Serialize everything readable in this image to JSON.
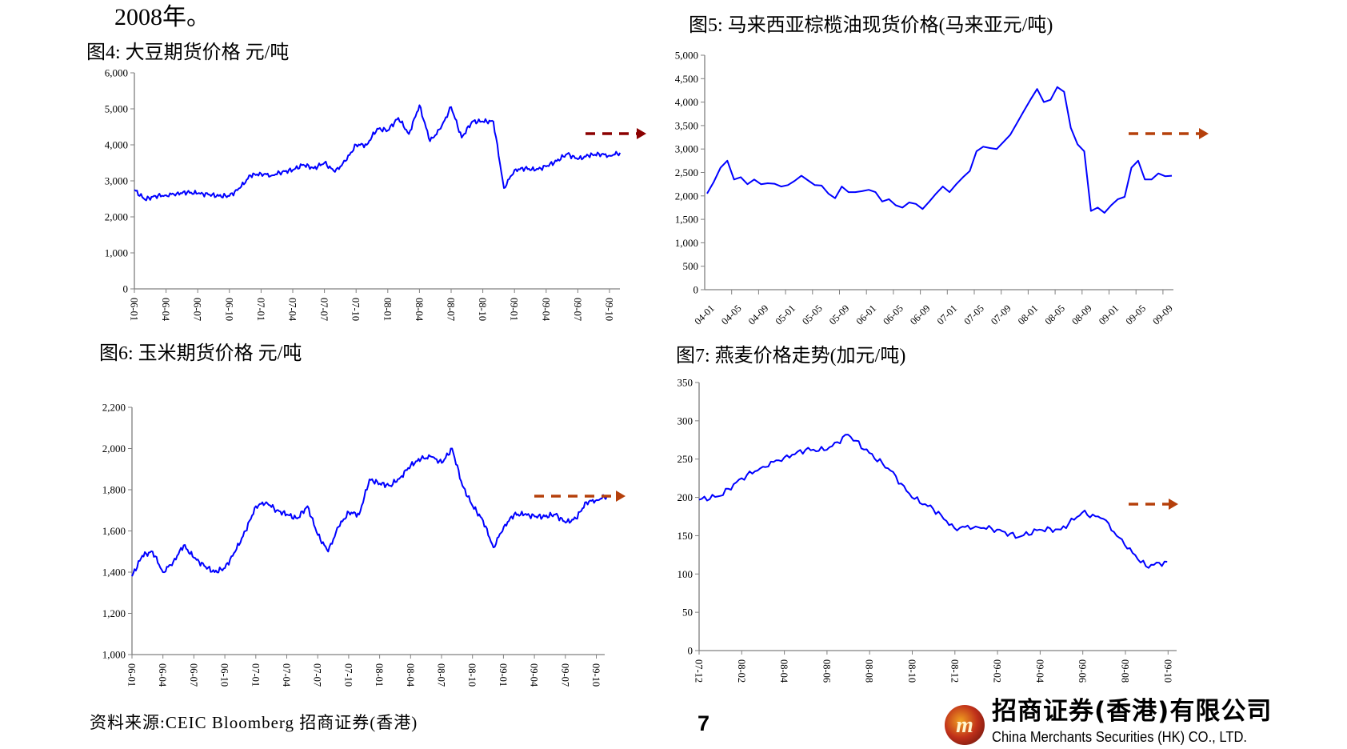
{
  "intro_text": "2008年。",
  "source_note": "资料来源:CEIC   Bloomberg   招商证券(香港)",
  "page_number": "7",
  "logo": {
    "name_cn": "招商证券(香港)有限公司",
    "name_en": "China Merchants Securities (HK) CO., LTD.",
    "emblem_text": "m"
  },
  "colors": {
    "series_line": "#0000FF",
    "arrow_dark_red": "#8B0000",
    "arrow_brown": "#B5400B",
    "axis": "#808080"
  },
  "chart_data": [
    {
      "id": "fig4",
      "type": "line",
      "title": "图4: 大豆期货价格 元/吨",
      "ylim": [
        0,
        6000
      ],
      "y_ticks": [
        0,
        1000,
        2000,
        3000,
        4000,
        5000,
        6000
      ],
      "y_tick_labels": [
        "0",
        "1,000",
        "2,000",
        "3,000",
        "4,000",
        "5,000",
        "6,000"
      ],
      "x_tick_labels": [
        "06-01",
        "06-04",
        "06-07",
        "06-10",
        "07-01",
        "07-04",
        "07-07",
        "07-10",
        "08-01",
        "08-04",
        "08-07",
        "08-10",
        "09-01",
        "09-04",
        "09-07",
        "09-10"
      ],
      "x": [
        "06-01",
        "06-02",
        "06-03",
        "06-04",
        "06-05",
        "06-06",
        "06-07",
        "06-08",
        "06-09",
        "06-10",
        "06-11",
        "06-12",
        "07-01",
        "07-02",
        "07-03",
        "07-04",
        "07-05",
        "07-06",
        "07-07",
        "07-08",
        "07-09",
        "07-10",
        "07-11",
        "07-12",
        "08-01",
        "08-02",
        "08-03",
        "08-04",
        "08-05",
        "08-06",
        "08-07",
        "08-08",
        "08-09",
        "08-10",
        "08-11",
        "08-12",
        "09-01",
        "09-02",
        "09-03",
        "09-04",
        "09-05",
        "09-06",
        "09-07",
        "09-08",
        "09-09",
        "09-10",
        "09-11"
      ],
      "values": [
        2750,
        2480,
        2580,
        2600,
        2650,
        2680,
        2650,
        2620,
        2580,
        2580,
        2800,
        3150,
        3200,
        3150,
        3250,
        3300,
        3450,
        3350,
        3500,
        3250,
        3550,
        4000,
        4000,
        4450,
        4400,
        4750,
        4300,
        5100,
        4100,
        4450,
        5050,
        4200,
        4650,
        4650,
        4650,
        2800,
        3300,
        3350,
        3300,
        3400,
        3550,
        3750,
        3600,
        3700,
        3750,
        3700,
        3780
      ],
      "grid": false,
      "annotation": "dashed-arrow-right"
    },
    {
      "id": "fig5",
      "type": "line",
      "title": "图5:  马来西亚棕榄油现货价格(马来亚元/吨)",
      "ylim": [
        0,
        5000
      ],
      "y_ticks": [
        0,
        500,
        1000,
        1500,
        2000,
        2500,
        3000,
        3500,
        4000,
        4500,
        5000
      ],
      "y_tick_labels": [
        "0",
        "500",
        "1,000",
        "1,500",
        "2,000",
        "2,500",
        "3,000",
        "3,500",
        "4,000",
        "4,500",
        "5,000"
      ],
      "x_tick_labels": [
        "04-01",
        "04-05",
        "04-09",
        "05-01",
        "05-05",
        "05-09",
        "06-01",
        "06-05",
        "06-09",
        "07-01",
        "07-05",
        "07-09",
        "08-01",
        "08-05",
        "08-09",
        "09-01",
        "09-05",
        "09-09"
      ],
      "values": [
        2050,
        2300,
        2600,
        2750,
        2350,
        2400,
        2250,
        2350,
        2250,
        2270,
        2260,
        2200,
        2230,
        2320,
        2430,
        2330,
        2230,
        2220,
        2050,
        1950,
        2200,
        2080,
        2080,
        2100,
        2130,
        2080,
        1880,
        1930,
        1800,
        1750,
        1860,
        1830,
        1720,
        1880,
        2050,
        2200,
        2080,
        2250,
        2400,
        2530,
        2950,
        3050,
        3020,
        3000,
        3150,
        3300,
        3550,
        3800,
        4050,
        4280,
        4000,
        4050,
        4320,
        4220,
        3450,
        3100,
        2950,
        1680,
        1750,
        1640,
        1800,
        1930,
        1980,
        2600,
        2750,
        2350,
        2350,
        2480,
        2420,
        2430
      ],
      "x_start": "04-01",
      "x_frequency": "monthly",
      "grid": false,
      "annotation": "dashed-arrow-right"
    },
    {
      "id": "fig6",
      "type": "line",
      "title": "图6:  玉米期货价格   元/吨",
      "ylim": [
        1000,
        2200
      ],
      "y_ticks": [
        1000,
        1200,
        1400,
        1600,
        1800,
        2000,
        2200
      ],
      "y_tick_labels": [
        "1,000",
        "1,200",
        "1,400",
        "1,600",
        "1,800",
        "2,000",
        "2,200"
      ],
      "x_tick_labels": [
        "06-01",
        "06-04",
        "06-07",
        "06-10",
        "07-01",
        "07-04",
        "07-07",
        "07-10",
        "08-01",
        "08-04",
        "08-07",
        "08-10",
        "09-01",
        "09-04",
        "09-07",
        "09-10"
      ],
      "values": [
        1380,
        1480,
        1500,
        1400,
        1450,
        1530,
        1470,
        1430,
        1400,
        1420,
        1500,
        1600,
        1720,
        1740,
        1700,
        1680,
        1660,
        1720,
        1580,
        1500,
        1620,
        1690,
        1680,
        1850,
        1830,
        1820,
        1860,
        1920,
        1950,
        1960,
        1930,
        2000,
        1820,
        1720,
        1650,
        1520,
        1620,
        1680,
        1680,
        1670,
        1670,
        1680,
        1640,
        1660,
        1740,
        1750,
        1770
      ],
      "x_start": "06-01",
      "x_frequency": "monthly",
      "grid": false,
      "annotation": "dashed-arrow-right"
    },
    {
      "id": "fig7",
      "type": "line",
      "title": "图7: 燕麦价格走势(加元/吨)",
      "ylim": [
        0,
        350
      ],
      "y_ticks": [
        0,
        50,
        100,
        150,
        200,
        250,
        300,
        350
      ],
      "y_tick_labels": [
        "0",
        "50",
        "100",
        "150",
        "200",
        "250",
        "300",
        "350"
      ],
      "x_tick_labels": [
        "07-12",
        "08-02",
        "08-04",
        "08-06",
        "08-08",
        "08-10",
        "08-12",
        "09-02",
        "09-04",
        "09-06",
        "09-08",
        "09-10"
      ],
      "values": [
        197,
        202,
        225,
        240,
        252,
        262,
        262,
        282,
        258,
        235,
        200,
        185,
        160,
        162,
        158,
        148,
        158,
        158,
        180,
        172,
        138,
        110,
        116
      ],
      "x_start": "07-12",
      "x_frequency": "monthly",
      "grid": false,
      "annotation": "dashed-arrow-right"
    }
  ]
}
